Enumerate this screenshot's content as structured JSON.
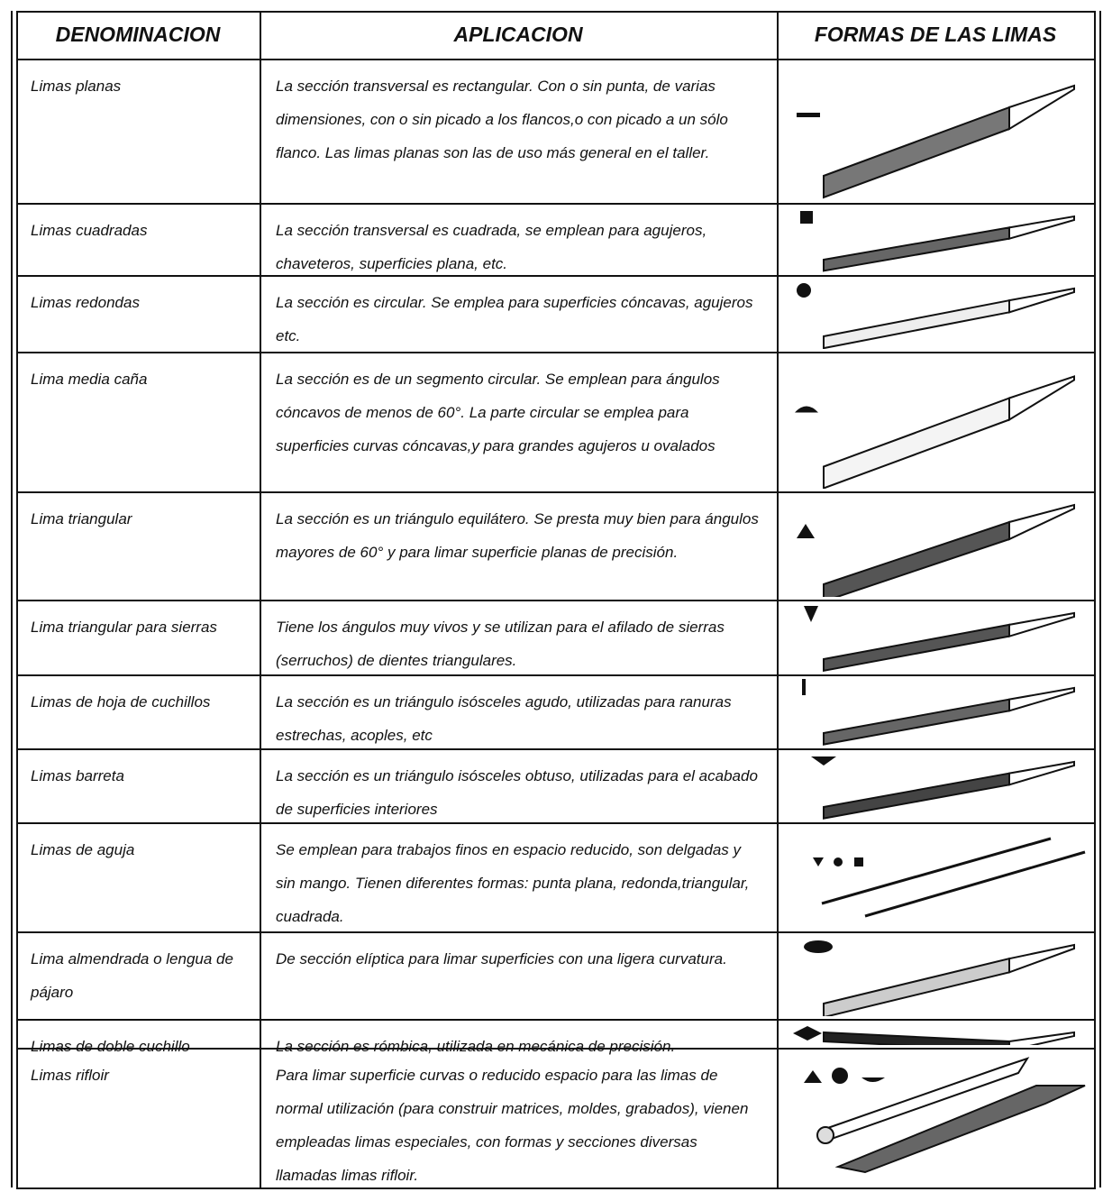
{
  "header": {
    "columns": [
      "DENOMINACION",
      "APLICACION",
      "FORMAS DE LAS LIMAS"
    ]
  },
  "rows": [
    {
      "name": "Limas planas",
      "application": "La sección transversal es rectangular. Con o sin punta, de varias dimensiones, con o sin picado a los flancos,o con picado a un sólo flanco. Las limas planas son las de uso más general en el taller."
    },
    {
      "name": "Limas cuadradas",
      "application": "La sección transversal es cuadrada, se emplean para agujeros, chaveteros, superficies plana, etc."
    },
    {
      "name": "Limas redondas",
      "application": "La sección es circular. Se emplea para superficies cóncavas, agujeros etc."
    },
    {
      "name": "Lima media caña",
      "application": "La sección es de un segmento circular. Se emplean para ángulos cóncavos de menos de 60°. La parte circular se emplea para superficies curvas cóncavas,y para grandes agujeros u ovalados"
    },
    {
      "name": "Lima triangular",
      "application": "La sección es un triángulo equilátero. Se presta muy bien para ángulos mayores de 60° y para limar superficie planas de precisión."
    },
    {
      "name": "Lima triangular para sierras",
      "application": "Tiene los ángulos muy vivos y se utilizan para el afilado de sierras (serruchos) de dientes triangulares."
    },
    {
      "name": "Limas de hoja de cuchillos",
      "application": "La sección es un triángulo isósceles agudo, utilizadas para ranuras estrechas, acoples, etc"
    },
    {
      "name": "Limas barreta",
      "application": "La sección es un triángulo isósceles obtuso, utilizadas para el acabado de superficies interiores"
    },
    {
      "name": "Limas de aguja",
      "application": "Se emplean para trabajos finos en espacio reducido, son delgadas y sin mango. Tienen diferentes formas: punta plana, redonda,triangular, cuadrada."
    },
    {
      "name": "Lima almendrada o lengua de pájaro",
      "application": "De sección elíptica para limar superficies con una ligera curvatura."
    },
    {
      "name": "Limas de doble cuchillo",
      "application": "La sección es rómbica, utilizada en mecánica de precisión."
    },
    {
      "name": "Limas rifloir",
      "application": "Para limar superficie curvas o reducido espacio para las limas de normal utilización (para construir matrices, moldes, grabados), vienen empleadas limas especiales, con formas y secciones diversas llamadas limas rifloir."
    }
  ]
}
